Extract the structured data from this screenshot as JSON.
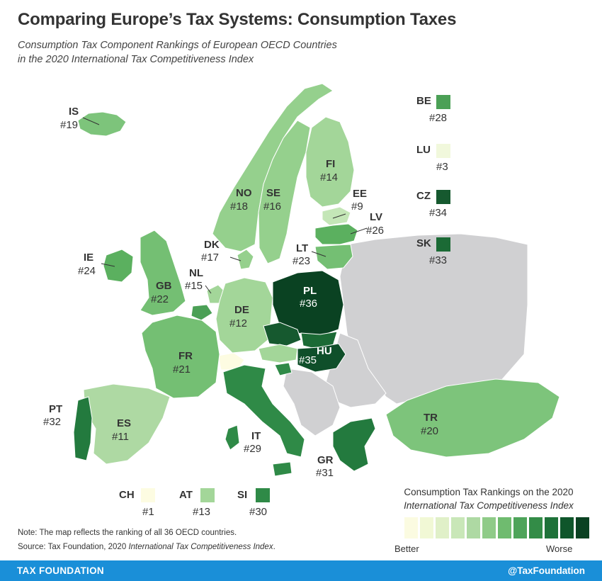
{
  "title": "Comparing Europe’s Tax Systems: Consumption Taxes",
  "subtitle_line1": "Consumption Tax Component Rankings of European OECD Countries",
  "subtitle_line2": "in the 2020 International Tax Competitiveness Index",
  "countries": [
    {
      "code": "IS",
      "rank": "#19",
      "color": "#7dc47b"
    },
    {
      "code": "NO",
      "rank": "#18",
      "color": "#95d08d"
    },
    {
      "code": "SE",
      "rank": "#16",
      "color": "#95d08d"
    },
    {
      "code": "FI",
      "rank": "#14",
      "color": "#a3d699"
    },
    {
      "code": "EE",
      "rank": "#9",
      "color": "#c4e6b7"
    },
    {
      "code": "LV",
      "rank": "#26",
      "color": "#5bb05f"
    },
    {
      "code": "LT",
      "rank": "#23",
      "color": "#74bf73"
    },
    {
      "code": "DK",
      "rank": "#17",
      "color": "#95d08d"
    },
    {
      "code": "IE",
      "rank": "#24",
      "color": "#5bb05f"
    },
    {
      "code": "GB",
      "rank": "#22",
      "color": "#74bf73"
    },
    {
      "code": "NL",
      "rank": "#15",
      "color": "#a3d699"
    },
    {
      "code": "DE",
      "rank": "#12",
      "color": "#a3d699"
    },
    {
      "code": "PL",
      "rank": "#36",
      "color": "#0a4222"
    },
    {
      "code": "HU",
      "rank": "#35",
      "color": "#0f4f2a"
    },
    {
      "code": "FR",
      "rank": "#21",
      "color": "#74bf73"
    },
    {
      "code": "PT",
      "rank": "#32",
      "color": "#237a3e"
    },
    {
      "code": "ES",
      "rank": "#11",
      "color": "#aed9a3"
    },
    {
      "code": "IT",
      "rank": "#29",
      "color": "#2f8a47"
    },
    {
      "code": "GR",
      "rank": "#31",
      "color": "#237a3e"
    },
    {
      "code": "TR",
      "rank": "#20",
      "color": "#7dc47b"
    }
  ],
  "unlabeled_colors": {
    "CZ": "#16592f",
    "SK": "#1b6a35",
    "AT": "#a3d699",
    "CH": "#fbfbe1",
    "SI": "#2f8a47",
    "BE": "#4ba056",
    "non_oecd": "#d0d0d2"
  },
  "small_keys": [
    {
      "code": "BE",
      "rank": "#28",
      "color": "#4ba056"
    },
    {
      "code": "LU",
      "rank": "#3",
      "color": "#f1f8dc"
    },
    {
      "code": "CZ",
      "rank": "#34",
      "color": "#16592f"
    },
    {
      "code": "SK",
      "rank": "#33",
      "color": "#1b6a35"
    },
    {
      "code": "CH",
      "rank": "#1",
      "color": "#fdfce2"
    },
    {
      "code": "AT",
      "rank": "#13",
      "color": "#a3d699"
    },
    {
      "code": "SI",
      "rank": "#30",
      "color": "#2f8a47"
    }
  ],
  "legend": {
    "title_line1": "Consumption Tax Rankings on the 2020",
    "title_line2": "International Tax Competitiveness Index",
    "low_label": "Better",
    "high_label": "Worse",
    "colors": [
      "#fbfbe1",
      "#f1f8d5",
      "#e0f0c8",
      "#c9e7b8",
      "#aed9a3",
      "#8fcb88",
      "#6fbb6f",
      "#4ea45a",
      "#338c47",
      "#1e7239",
      "#0f562b",
      "#0a4222"
    ]
  },
  "note_prefix": "Note: The map reflects the ranking of all 36 OECD countries.",
  "source_prefix": "Source: Tax Foundation, 2020 ",
  "source_italic": "International Tax Competitiveness Index",
  "source_suffix": ".",
  "footer": {
    "brand": "TAX FOUNDATION",
    "handle": "@TaxFoundation"
  }
}
